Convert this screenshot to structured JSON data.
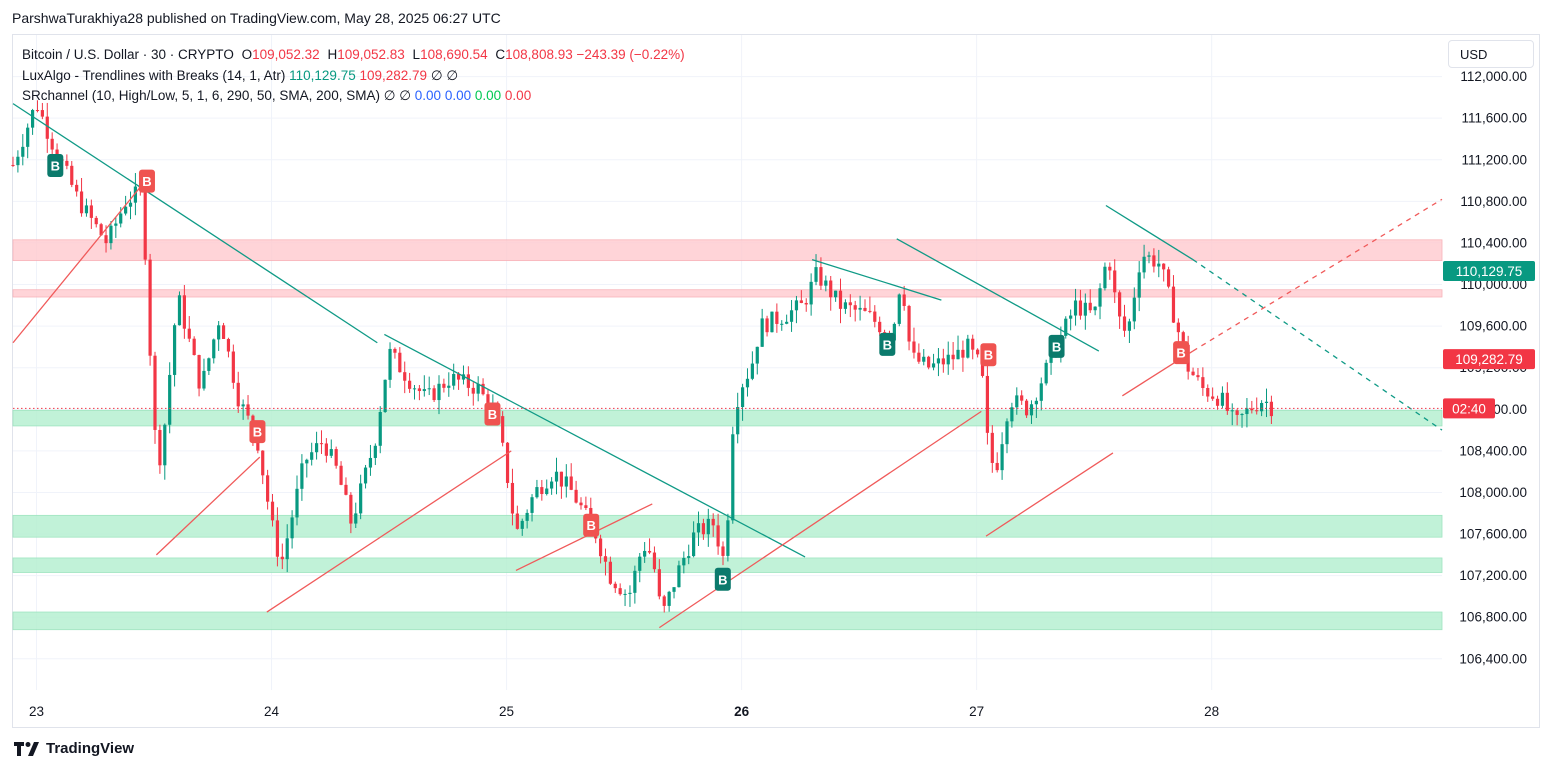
{
  "caption": "ParshwaTurakhiya28 published on TradingView.com, May 28, 2025 06:27 UTC",
  "legend": {
    "symbol": "Bitcoin / U.S. Dollar · 30 · CRYPTO",
    "o_label": "O",
    "o": "109,052.32",
    "h_label": "H",
    "h": "109,052.83",
    "l_label": "L",
    "l": "108,690.54",
    "c_label": "C",
    "c": "108,808.93",
    "change": "−243.39 (−0.22%)",
    "lux_label": "LuxAlgo - Trendlines with Breaks (14, 1, Atr)",
    "lux_v1": "110,129.75",
    "lux_v2": "109,282.79",
    "lux_v3": "∅",
    "lux_v4": "∅",
    "sr_label": "SRchannel (10, High/Low, 5, 1, 6, 290, 50, SMA, 200, SMA)",
    "sr_v1": "∅",
    "sr_v2": "∅",
    "sr_v3": "0.00",
    "sr_v4": "0.00",
    "sr_v5": "0.00",
    "sr_v6": "0.00"
  },
  "currency_button": "USD",
  "footer_brand": "TradingView",
  "colors": {
    "up": "#089981",
    "down": "#f23645",
    "support_zone": "#b7f0d2",
    "resistance_zone": "#ffcdd2",
    "trend_down": "#0f9a86",
    "trend_up": "#f05a5a"
  },
  "chart_data": {
    "type": "candlestick",
    "title": "Bitcoin / U.S. Dollar · 30 · CRYPTO",
    "y_range": [
      106100,
      112400
    ],
    "y_ticks": [
      112000,
      111600,
      111200,
      110800,
      110400,
      110000,
      109600,
      109200,
      108800,
      108400,
      108000,
      107600,
      107200,
      106800,
      106400
    ],
    "y_tick_labels": [
      "112,000.00",
      "111,600.00",
      "111,200.00",
      "110,800.00",
      "110,400.00",
      "110,000.00",
      "109,600.00",
      "109,200.00",
      "108,800.00",
      "108,400.00",
      "108,000.00",
      "107,600.00",
      "107,200.00",
      "106,800.00",
      "106,400.00"
    ],
    "x_range_days": [
      22.9,
      28.98
    ],
    "x_ticks": [
      {
        "day": 23,
        "label": "23",
        "bold": false
      },
      {
        "day": 24,
        "label": "24",
        "bold": false
      },
      {
        "day": 25,
        "label": "25",
        "bold": false
      },
      {
        "day": 26,
        "label": "26",
        "bold": true
      },
      {
        "day": 27,
        "label": "27",
        "bold": false
      },
      {
        "day": 28,
        "label": "28",
        "bold": false
      }
    ],
    "price_tags": [
      {
        "price": 110129.75,
        "label": "110,129.75",
        "color": "#089981"
      },
      {
        "price": 109282.79,
        "label": "109,282.79",
        "color": "#f23645"
      },
      {
        "price": 108808.93,
        "label": "02:40",
        "color": "#f23645"
      }
    ],
    "current_price": 108808.93,
    "zones": [
      {
        "low": 110230,
        "high": 110430,
        "kind": "resistance"
      },
      {
        "low": 109880,
        "high": 109950,
        "kind": "resistance"
      },
      {
        "low": 108640,
        "high": 108790,
        "kind": "support"
      },
      {
        "low": 107570,
        "high": 107780,
        "kind": "support"
      },
      {
        "low": 107230,
        "high": 107370,
        "kind": "support"
      },
      {
        "low": 106680,
        "high": 106850,
        "kind": "support"
      }
    ],
    "trendlines": [
      {
        "x1": 22.9,
        "y1": 111740,
        "x2": 24.45,
        "y2": 109440,
        "color": "trend_down"
      },
      {
        "x1": 24.48,
        "y1": 109520,
        "x2": 26.27,
        "y2": 107380,
        "color": "trend_down"
      },
      {
        "x1": 26.3,
        "y1": 110240,
        "x2": 26.85,
        "y2": 109850,
        "color": "trend_down"
      },
      {
        "x1": 26.66,
        "y1": 110440,
        "x2": 27.52,
        "y2": 109360,
        "color": "trend_down"
      },
      {
        "x1": 27.55,
        "y1": 110760,
        "x2": 27.92,
        "y2": 110240,
        "color": "trend_down"
      },
      {
        "x1": 27.92,
        "y1": 110240,
        "x2": 28.98,
        "y2": 108600,
        "color": "trend_down",
        "dashed": true
      },
      {
        "x1": 22.9,
        "y1": 109440,
        "x2": 23.45,
        "y2": 110960,
        "color": "trend_up"
      },
      {
        "x1": 23.51,
        "y1": 107400,
        "x2": 23.95,
        "y2": 108340,
        "color": "trend_up"
      },
      {
        "x1": 23.98,
        "y1": 106850,
        "x2": 25.02,
        "y2": 108400,
        "color": "trend_up"
      },
      {
        "x1": 25.04,
        "y1": 107250,
        "x2": 25.62,
        "y2": 107890,
        "color": "trend_up"
      },
      {
        "x1": 25.65,
        "y1": 106700,
        "x2": 27.02,
        "y2": 108780,
        "color": "trend_up"
      },
      {
        "x1": 27.04,
        "y1": 107580,
        "x2": 27.58,
        "y2": 108380,
        "color": "trend_up"
      },
      {
        "x1": 27.62,
        "y1": 108930,
        "x2": 27.92,
        "y2": 109360,
        "color": "trend_up"
      },
      {
        "x1": 27.92,
        "y1": 109360,
        "x2": 28.98,
        "y2": 110820,
        "color": "trend_up",
        "dashed": true
      }
    ],
    "markers": [
      {
        "day": 23.08,
        "price": 111140,
        "label": "B",
        "kind": "up"
      },
      {
        "day": 23.47,
        "price": 110990,
        "label": "B",
        "kind": "down"
      },
      {
        "day": 23.94,
        "price": 108580,
        "label": "B",
        "kind": "down"
      },
      {
        "day": 24.94,
        "price": 108750,
        "label": "B",
        "kind": "down"
      },
      {
        "day": 25.36,
        "price": 107680,
        "label": "B",
        "kind": "down"
      },
      {
        "day": 25.92,
        "price": 107160,
        "label": "B",
        "kind": "up"
      },
      {
        "day": 26.62,
        "price": 109420,
        "label": "B",
        "kind": "up"
      },
      {
        "day": 27.05,
        "price": 109320,
        "label": "B",
        "kind": "down"
      },
      {
        "day": 27.34,
        "price": 109400,
        "label": "B",
        "kind": "up"
      },
      {
        "day": 27.87,
        "price": 109340,
        "label": "B",
        "kind": "down"
      }
    ],
    "anchors": [
      {
        "day": 22.9,
        "price": 111150
      },
      {
        "day": 23.0,
        "price": 111750
      },
      {
        "day": 23.06,
        "price": 111400
      },
      {
        "day": 23.18,
        "price": 110800
      },
      {
        "day": 23.3,
        "price": 110400
      },
      {
        "day": 23.38,
        "price": 110800
      },
      {
        "day": 23.45,
        "price": 110900
      },
      {
        "day": 23.5,
        "price": 108600
      },
      {
        "day": 23.53,
        "price": 108300
      },
      {
        "day": 23.6,
        "price": 109900
      },
      {
        "day": 23.7,
        "price": 109000
      },
      {
        "day": 23.78,
        "price": 109700
      },
      {
        "day": 23.86,
        "price": 108900
      },
      {
        "day": 23.94,
        "price": 108500
      },
      {
        "day": 24.0,
        "price": 107700
      },
      {
        "day": 24.04,
        "price": 107300
      },
      {
        "day": 24.14,
        "price": 108300
      },
      {
        "day": 24.22,
        "price": 108500
      },
      {
        "day": 24.28,
        "price": 108200
      },
      {
        "day": 24.34,
        "price": 107700
      },
      {
        "day": 24.44,
        "price": 108500
      },
      {
        "day": 24.5,
        "price": 109350
      },
      {
        "day": 24.58,
        "price": 109100
      },
      {
        "day": 24.66,
        "price": 108900
      },
      {
        "day": 24.76,
        "price": 109100
      },
      {
        "day": 24.88,
        "price": 109000
      },
      {
        "day": 24.96,
        "price": 108700
      },
      {
        "day": 25.0,
        "price": 108200
      },
      {
        "day": 25.04,
        "price": 107600
      },
      {
        "day": 25.12,
        "price": 108000
      },
      {
        "day": 25.2,
        "price": 108200
      },
      {
        "day": 25.28,
        "price": 108000
      },
      {
        "day": 25.38,
        "price": 107600
      },
      {
        "day": 25.44,
        "price": 107200
      },
      {
        "day": 25.52,
        "price": 107000
      },
      {
        "day": 25.58,
        "price": 107500
      },
      {
        "day": 25.62,
        "price": 107400
      },
      {
        "day": 25.66,
        "price": 106800
      },
      {
        "day": 25.74,
        "price": 107300
      },
      {
        "day": 25.8,
        "price": 107600
      },
      {
        "day": 25.88,
        "price": 107700
      },
      {
        "day": 25.93,
        "price": 107300
      },
      {
        "day": 25.96,
        "price": 108600
      },
      {
        "day": 25.99,
        "price": 109000
      },
      {
        "day": 26.04,
        "price": 109200
      },
      {
        "day": 26.08,
        "price": 109600
      },
      {
        "day": 26.18,
        "price": 109700
      },
      {
        "day": 26.26,
        "price": 109800
      },
      {
        "day": 26.32,
        "price": 110100
      },
      {
        "day": 26.42,
        "price": 109800
      },
      {
        "day": 26.54,
        "price": 109700
      },
      {
        "day": 26.64,
        "price": 109500
      },
      {
        "day": 26.68,
        "price": 110100
      },
      {
        "day": 26.72,
        "price": 109300
      },
      {
        "day": 26.8,
        "price": 109200
      },
      {
        "day": 26.9,
        "price": 109300
      },
      {
        "day": 26.96,
        "price": 109400
      },
      {
        "day": 27.02,
        "price": 109200
      },
      {
        "day": 27.05,
        "price": 108400
      },
      {
        "day": 27.08,
        "price": 108200
      },
      {
        "day": 27.14,
        "price": 108900
      },
      {
        "day": 27.22,
        "price": 108800
      },
      {
        "day": 27.3,
        "price": 109200
      },
      {
        "day": 27.34,
        "price": 109400
      },
      {
        "day": 27.42,
        "price": 109800
      },
      {
        "day": 27.5,
        "price": 109700
      },
      {
        "day": 27.56,
        "price": 110300
      },
      {
        "day": 27.6,
        "price": 109700
      },
      {
        "day": 27.64,
        "price": 109500
      },
      {
        "day": 27.7,
        "price": 110300
      },
      {
        "day": 27.78,
        "price": 110200
      },
      {
        "day": 27.84,
        "price": 109700
      },
      {
        "day": 27.9,
        "price": 109200
      },
      {
        "day": 27.96,
        "price": 109000
      },
      {
        "day": 28.04,
        "price": 108900
      },
      {
        "day": 28.1,
        "price": 108650
      },
      {
        "day": 28.16,
        "price": 108800
      },
      {
        "day": 28.22,
        "price": 108900
      },
      {
        "day": 28.26,
        "price": 108810
      }
    ]
  }
}
